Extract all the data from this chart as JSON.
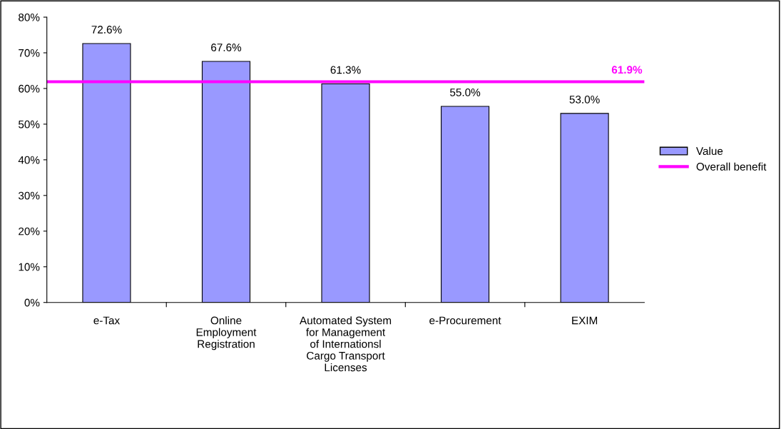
{
  "chart_data": {
    "type": "bar",
    "categories": [
      "e-Tax",
      "Online Employment Registration",
      "Automated System for Management of Internationsl Cargo Transport Licenses",
      "e-Procurement",
      "EXIM"
    ],
    "series": [
      {
        "name": "Value",
        "color": "#9999ff",
        "values": [
          72.6,
          67.6,
          61.3,
          55.0,
          53.0
        ],
        "value_labels": [
          "72.6%",
          "67.6%",
          "61.3%",
          "55.0%",
          "53.0%"
        ]
      }
    ],
    "ylim": [
      0,
      80
    ],
    "yticks": [
      {
        "value": 0,
        "label": "0%"
      },
      {
        "value": 10,
        "label": "10%"
      },
      {
        "value": 20,
        "label": "20%"
      },
      {
        "value": 30,
        "label": "30%"
      },
      {
        "value": 40,
        "label": "40%"
      },
      {
        "value": 50,
        "label": "50%"
      },
      {
        "value": 60,
        "label": "60%"
      },
      {
        "value": 70,
        "label": "70%"
      },
      {
        "value": 80,
        "label": "80%"
      }
    ],
    "ref_lines": [
      {
        "axis": "y",
        "value": 61.9,
        "label": "Overall benefit",
        "color": "#ff00ff",
        "line_style": "solid"
      }
    ],
    "annotations": [
      {
        "text": "61.9%",
        "y": 61.9
      }
    ],
    "grid": false,
    "legend": "right"
  }
}
